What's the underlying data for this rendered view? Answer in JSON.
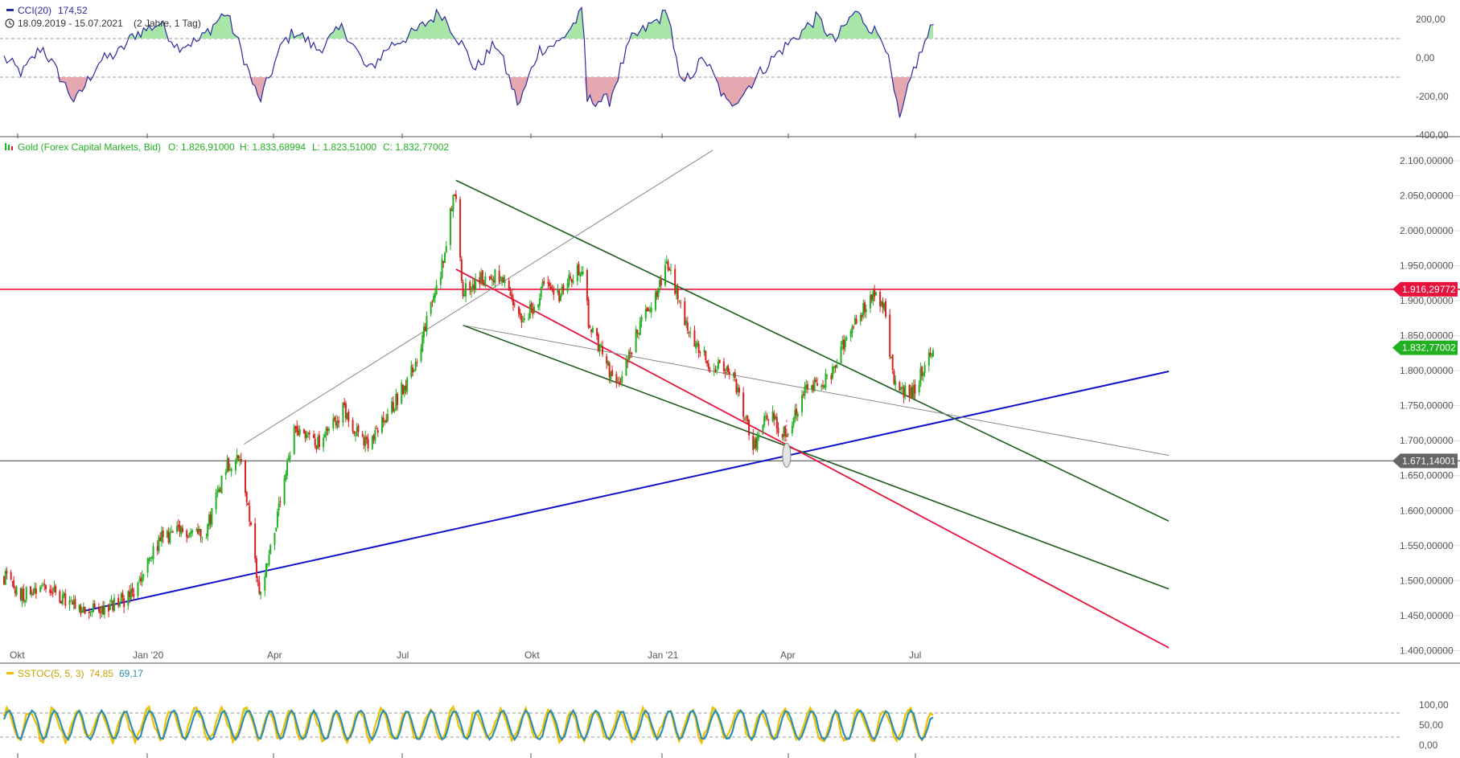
{
  "colors": {
    "cci_line": "#2a2aa0",
    "cci_pos_fill": "#a8e6a8",
    "cci_neg_fill": "#e6a8b0",
    "candle_up": "#20b020",
    "candle_down": "#d82020",
    "channel_green": "#1e5c1e",
    "red_line": "#e8103c",
    "blue_line": "#1010c8",
    "grey_line": "#888888",
    "stoch_k": "#f0c000",
    "stoch_d": "#2a8fb0",
    "price_badge": "#20b020",
    "resistance_badge": "#e8103c",
    "support_badge": "#666666"
  },
  "cci_panel": {
    "title": "CCI(20)",
    "value": "174,52",
    "range_label": "18.09.2019 - 15.07.2021",
    "period_label": "(2 Jahre, 1 Tag)",
    "y_ticks": [
      "200,00",
      "0,00",
      "-200,00",
      "-400,00"
    ]
  },
  "price_panel": {
    "legend_name": "Gold (Forex Capital Markets, Bid)",
    "legend_o": "O: 1.826,91000",
    "legend_h": "H: 1.833,68994",
    "legend_l": "L: 1.823,51000",
    "legend_c": "C: 1.832,77002",
    "y_ticks": [
      "2.100,00000",
      "2.050,00000",
      "2.000,00000",
      "1.950,00000",
      "1.900,00000",
      "1.850,00000",
      "1.800,00000",
      "1.750,00000",
      "1.700,00000",
      "1.650,00000",
      "1.600,00000",
      "1.550,00000",
      "1.500,00000",
      "1.450,00000",
      "1.400,00000"
    ],
    "badge_resistance": "1.916,29772",
    "badge_price": "1.832,77002",
    "badge_support": "1.671,14001",
    "x_labels": [
      "Okt",
      "Jan '20",
      "Apr",
      "Jul",
      "Okt",
      "Jan '21",
      "Apr",
      "Jul"
    ]
  },
  "stoch_panel": {
    "title": "SSTOC(5, 5, 3)",
    "value_k": "74,85",
    "value_d": "69,17",
    "y_ticks": [
      "100,00",
      "50,00",
      "0,00"
    ]
  },
  "chart_data": [
    {
      "type": "line",
      "name": "CCI(20)",
      "ylim": [
        -400,
        250
      ],
      "reference_lines": [
        100,
        -100
      ],
      "points": [
        [
          "2019-09-18",
          0
        ],
        [
          "2019-10-01",
          -80
        ],
        [
          "2019-10-15",
          60
        ],
        [
          "2019-11-08",
          -230
        ],
        [
          "2019-11-25",
          -20
        ],
        [
          "2019-12-10",
          30
        ],
        [
          "2019-12-20",
          120
        ],
        [
          "2020-01-08",
          180
        ],
        [
          "2020-01-20",
          60
        ],
        [
          "2020-02-05",
          90
        ],
        [
          "2020-02-24",
          240
        ],
        [
          "2020-03-06",
          40
        ],
        [
          "2020-03-19",
          -230
        ],
        [
          "2020-04-05",
          80
        ],
        [
          "2020-04-14",
          140
        ],
        [
          "2020-04-30",
          40
        ],
        [
          "2020-05-18",
          160
        ],
        [
          "2020-06-05",
          -70
        ],
        [
          "2020-06-20",
          60
        ],
        [
          "2020-07-08",
          130
        ],
        [
          "2020-07-27",
          240
        ],
        [
          "2020-08-12",
          60
        ],
        [
          "2020-08-21",
          -60
        ],
        [
          "2020-09-05",
          80
        ],
        [
          "2020-09-21",
          -250
        ],
        [
          "2020-10-05",
          40
        ],
        [
          "2020-10-20",
          80
        ],
        [
          "2020-11-06",
          240
        ],
        [
          "2020-11-09",
          -220
        ],
        [
          "2020-11-25",
          -220
        ],
        [
          "2020-12-10",
          90
        ],
        [
          "2021-01-06",
          240
        ],
        [
          "2021-01-15",
          -150
        ],
        [
          "2021-02-01",
          0
        ],
        [
          "2021-02-18",
          -250
        ],
        [
          "2021-03-01",
          -180
        ],
        [
          "2021-03-10",
          -100
        ],
        [
          "2021-03-25",
          20
        ],
        [
          "2021-04-08",
          110
        ],
        [
          "2021-04-23",
          210
        ],
        [
          "2021-05-05",
          80
        ],
        [
          "2021-05-20",
          240
        ],
        [
          "2021-06-01",
          150
        ],
        [
          "2021-06-10",
          100
        ],
        [
          "2021-06-21",
          -330
        ],
        [
          "2021-07-01",
          -60
        ],
        [
          "2021-07-15",
          175
        ]
      ]
    },
    {
      "type": "candlestick",
      "name": "Gold (Forex Capital Markets, Bid)",
      "ylim": [
        1400,
        2100
      ],
      "ohlc_last": {
        "open": 1826.91,
        "high": 1833.68994,
        "low": 1823.51,
        "close": 1832.77002
      },
      "close_path": [
        [
          "2019-09-18",
          1505
        ],
        [
          "2019-10-01",
          1480
        ],
        [
          "2019-10-15",
          1495
        ],
        [
          "2019-11-12",
          1455
        ],
        [
          "2019-12-02",
          1462
        ],
        [
          "2019-12-20",
          1480
        ],
        [
          "2020-01-08",
          1560
        ],
        [
          "2020-01-24",
          1570
        ],
        [
          "2020-02-10",
          1572
        ],
        [
          "2020-02-24",
          1665
        ],
        [
          "2020-03-06",
          1675
        ],
        [
          "2020-03-19",
          1480
        ],
        [
          "2020-04-01",
          1590
        ],
        [
          "2020-04-14",
          1720
        ],
        [
          "2020-05-01",
          1695
        ],
        [
          "2020-05-18",
          1745
        ],
        [
          "2020-06-05",
          1690
        ],
        [
          "2020-06-20",
          1740
        ],
        [
          "2020-07-08",
          1805
        ],
        [
          "2020-07-27",
          1940
        ],
        [
          "2020-08-06",
          2060
        ],
        [
          "2020-08-12",
          1915
        ],
        [
          "2020-08-25",
          1930
        ],
        [
          "2020-09-07",
          1935
        ],
        [
          "2020-09-24",
          1865
        ],
        [
          "2020-10-09",
          1920
        ],
        [
          "2020-10-20",
          1910
        ],
        [
          "2020-11-06",
          1950
        ],
        [
          "2020-11-10",
          1870
        ],
        [
          "2020-11-30",
          1775
        ],
        [
          "2020-12-16",
          1860
        ],
        [
          "2021-01-06",
          1950
        ],
        [
          "2021-01-20",
          1860
        ],
        [
          "2021-02-05",
          1810
        ],
        [
          "2021-02-22",
          1790
        ],
        [
          "2021-03-08",
          1690
        ],
        [
          "2021-03-18",
          1740
        ],
        [
          "2021-03-31",
          1710
        ],
        [
          "2021-04-16",
          1780
        ],
        [
          "2021-05-03",
          1790
        ],
        [
          "2021-05-18",
          1870
        ],
        [
          "2021-06-01",
          1905
        ],
        [
          "2021-06-10",
          1895
        ],
        [
          "2021-06-17",
          1780
        ],
        [
          "2021-06-29",
          1765
        ],
        [
          "2021-07-15",
          1832.77
        ]
      ],
      "horizontal_levels": [
        1916.29772,
        1671.14001
      ],
      "trendlines": [
        {
          "color": "blue",
          "from": [
            "2019-11-13",
            1456
          ],
          "to": [
            "2021-12-31",
            1799
          ]
        },
        {
          "color": "dark-green",
          "from": [
            "2020-08-07",
            2072
          ],
          "to": [
            "2021-12-31",
            1585
          ]
        },
        {
          "color": "dark-green",
          "from": [
            "2020-08-12",
            1865
          ],
          "to": [
            "2021-12-31",
            1488
          ]
        },
        {
          "color": "red",
          "from": [
            "2020-08-07",
            1945
          ],
          "to": [
            "2021-12-31",
            1404
          ]
        },
        {
          "color": "grey",
          "from": [
            "2020-03-08",
            1695
          ],
          "to": [
            "2021-02-07",
            2115
          ]
        },
        {
          "color": "grey",
          "from": [
            "2020-08-12",
            1865
          ],
          "to": [
            "2021-12-31",
            1679
          ]
        }
      ],
      "annotation": {
        "date": "2021-04-01",
        "value": 1670
      }
    },
    {
      "type": "line",
      "name": "SSTOC(5, 5, 3)",
      "ylim": [
        0,
        100
      ],
      "reference_lines": [
        80,
        20
      ],
      "last_k": 74.85,
      "last_d": 69.17
    }
  ]
}
